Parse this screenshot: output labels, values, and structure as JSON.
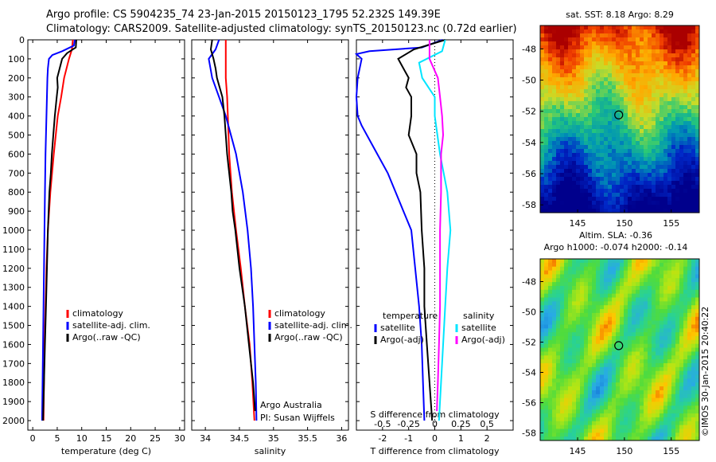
{
  "header": {
    "line1": "Argo profile: CS 5904235_74 23-Jan-2015 20150123_1795 52.232S 149.39E",
    "line2": "Climatology: CARS2009. Satellite-adjusted climatology: synTS_20150123.nc (0.72d earlier)"
  },
  "side_label": "©IMOS 30-Jan-2015 20:40:22",
  "colors": {
    "climatology": "#ff0000",
    "satellite": "#0000ff",
    "argo": "#000000",
    "sal_sat": "#00e5ff",
    "sal_argo": "#ff00ff"
  },
  "chart_data": [
    {
      "id": "temperature",
      "type": "line",
      "xlabel": "temperature (deg C)",
      "ylabel": "",
      "xlim": [
        -1,
        31
      ],
      "ylim": [
        2050,
        0
      ],
      "xticks": [
        0,
        5,
        10,
        15,
        20,
        25,
        30
      ],
      "yticks": [
        0,
        100,
        200,
        300,
        400,
        500,
        600,
        700,
        800,
        900,
        1000,
        1100,
        1200,
        1300,
        1400,
        1500,
        1600,
        1700,
        1800,
        1900,
        2000
      ],
      "legend": [
        "climatology",
        "satellite-adj. clim.",
        "Argo(..raw -QC)"
      ],
      "series": [
        {
          "name": "climatology",
          "depth": [
            0,
            50,
            100,
            200,
            300,
            400,
            500,
            600,
            800,
            1000,
            1200,
            1400,
            1600,
            1800,
            2000
          ],
          "values": [
            8.2,
            8.0,
            7.4,
            6.4,
            5.8,
            5.1,
            4.7,
            4.3,
            3.6,
            3.1,
            2.8,
            2.6,
            2.4,
            2.3,
            2.2
          ]
        },
        {
          "name": "satellite-adj. clim.",
          "depth": [
            0,
            30,
            60,
            80,
            100,
            150,
            200,
            300,
            400,
            600,
            800,
            1000,
            1400,
            2000
          ],
          "values": [
            8.6,
            8.4,
            6.0,
            4.0,
            3.3,
            3.1,
            3.0,
            2.9,
            2.8,
            2.6,
            2.5,
            2.4,
            2.2,
            1.9
          ]
        },
        {
          "name": "Argo(..raw -QC)",
          "depth": [
            0,
            40,
            70,
            100,
            150,
            200,
            250,
            300,
            400,
            500,
            600,
            700,
            800,
            1000,
            1200,
            1400,
            1600,
            1800,
            2000
          ],
          "values": [
            8.9,
            8.8,
            7.0,
            6.0,
            5.5,
            5.0,
            5.1,
            4.9,
            4.5,
            4.2,
            3.9,
            3.7,
            3.4,
            3.1,
            2.9,
            2.7,
            2.5,
            2.3,
            2.1
          ]
        }
      ]
    },
    {
      "id": "salinity",
      "type": "line",
      "xlabel": "salinity",
      "ylabel": "",
      "xlim": [
        33.8,
        36.1
      ],
      "ylim": [
        2050,
        0
      ],
      "xticks": [
        34,
        34.5,
        35,
        35.5,
        36
      ],
      "legend": [
        "climatology",
        "satellite-adj. clim.",
        "Argo(..raw -QC)"
      ],
      "annotation": [
        "Argo Australia",
        "PI: Susan Wijffels"
      ],
      "series": [
        {
          "name": "climatology",
          "depth": [
            0,
            100,
            200,
            300,
            400,
            600,
            800,
            1000,
            1200,
            1400,
            1600,
            1800,
            2000
          ],
          "values": [
            34.3,
            34.3,
            34.3,
            34.32,
            34.33,
            34.35,
            34.39,
            34.45,
            34.52,
            34.58,
            34.65,
            34.69,
            34.72
          ]
        },
        {
          "name": "satellite-adj. clim.",
          "depth": [
            0,
            50,
            100,
            200,
            300,
            400,
            600,
            800,
            1000,
            1200,
            1400,
            1600,
            1800,
            2000
          ],
          "values": [
            34.2,
            34.15,
            34.05,
            34.1,
            34.2,
            34.3,
            34.45,
            34.55,
            34.62,
            34.67,
            34.7,
            34.72,
            34.74,
            34.75
          ]
        },
        {
          "name": "Argo(..raw -QC)",
          "depth": [
            0,
            50,
            100,
            150,
            200,
            300,
            400,
            500,
            600,
            700,
            800,
            900,
            1000,
            1200,
            1400,
            1600,
            1800,
            1950
          ],
          "values": [
            34.1,
            34.08,
            34.12,
            34.15,
            34.17,
            34.25,
            34.28,
            34.3,
            34.32,
            34.35,
            34.38,
            34.4,
            34.44,
            34.5,
            34.58,
            34.64,
            34.7,
            34.73
          ]
        }
      ]
    },
    {
      "id": "difference",
      "type": "line",
      "xlabel": "T difference from climatology",
      "xlabel_top": "S difference from climatology",
      "xlim": [
        -3,
        3
      ],
      "ylim": [
        2050,
        0
      ],
      "xticks": [
        -2,
        -1,
        0,
        1,
        2
      ],
      "x2ticks": [
        -0.5,
        -0.25,
        0,
        0.25,
        0.5
      ],
      "legend_left_title": "temperature",
      "legend_right_title": "salinity",
      "legend": [
        "satellite",
        "Argo(-adj)",
        "satellite",
        "Argo(-adj)"
      ],
      "series": [
        {
          "name": "T satellite",
          "depth": [
            0,
            40,
            60,
            75,
            100,
            200,
            300,
            400,
            450,
            550,
            700,
            800,
            900,
            1000,
            1200,
            1400,
            1600,
            1800,
            2000
          ],
          "values": [
            0.3,
            -0.5,
            -2.5,
            -3,
            -2.8,
            -2.95,
            -3,
            -2.95,
            -2.8,
            -2.4,
            -1.8,
            -1.5,
            -1.2,
            -0.9,
            -0.75,
            -0.6,
            -0.5,
            -0.45,
            -0.4
          ]
        },
        {
          "name": "T Argo(-adj)",
          "depth": [
            0,
            50,
            100,
            150,
            200,
            250,
            300,
            400,
            500,
            600,
            700,
            800,
            1000,
            1200,
            1400,
            1600,
            1800,
            2000
          ],
          "values": [
            0.4,
            -0.8,
            -1.4,
            -1.2,
            -1.0,
            -1.1,
            -0.9,
            -0.9,
            -1.0,
            -0.7,
            -0.7,
            -0.55,
            -0.5,
            -0.4,
            -0.4,
            -0.3,
            -0.2,
            -0.1
          ]
        },
        {
          "name": "S satellite",
          "depth": [
            0,
            60,
            120,
            200,
            300,
            400,
            600,
            800,
            1000,
            1200,
            1400,
            1600,
            1800,
            2000
          ],
          "values": [
            0.1,
            0.07,
            -0.15,
            -0.12,
            0.0,
            0.0,
            0.05,
            0.12,
            0.15,
            0.12,
            0.1,
            0.08,
            0.06,
            0.04
          ]
        },
        {
          "name": "S Argo(-adj)",
          "depth": [
            0,
            100,
            200,
            300,
            400,
            500,
            600,
            800,
            1000,
            1200,
            1400,
            1600,
            1800,
            1950
          ],
          "values": [
            -0.05,
            -0.05,
            0.03,
            0.05,
            0.07,
            0.08,
            0.06,
            0.06,
            0.05,
            0.05,
            0.05,
            0.04,
            0.03,
            0.02
          ]
        }
      ]
    },
    {
      "id": "sst_map",
      "type": "heatmap",
      "title": "sat. SST: 8.18 Argo: 8.29",
      "xticks": [
        145,
        150,
        155
      ],
      "yticks": [
        -48,
        -50,
        -52,
        -54,
        -56,
        -58
      ],
      "xlim": [
        141,
        158
      ],
      "ylim": [
        -58.5,
        -46.5
      ],
      "marker": {
        "lon": 149.39,
        "lat": -52.232
      }
    },
    {
      "id": "sla_map",
      "type": "heatmap",
      "title": "Altim. SLA: -0.36",
      "subtitle": "Argo h1000: -0.074 h2000: -0.14",
      "xticks": [
        145,
        150,
        155
      ],
      "yticks": [
        -48,
        -50,
        -52,
        -54,
        -56,
        -58
      ],
      "xlim": [
        141,
        158
      ],
      "ylim": [
        -58.5,
        -46.5
      ],
      "marker": {
        "lon": 149.39,
        "lat": -52.232
      }
    }
  ]
}
